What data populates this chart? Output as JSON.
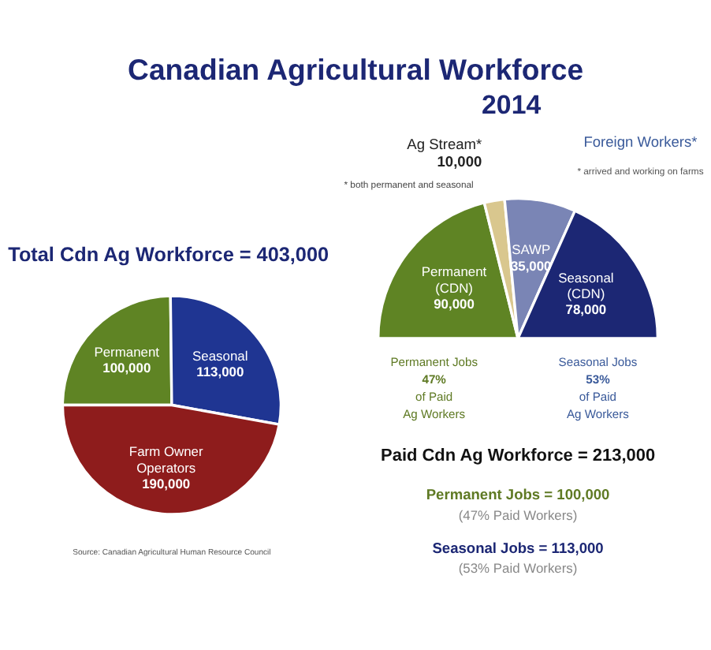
{
  "chart_data": [
    {
      "type": "pie",
      "title": "Canadian Agricultural Workforce",
      "subtitle": "Total Cdn Ag Workforce = 403,000",
      "categories": [
        "Permanent",
        "Seasonal",
        "Farm Owner Operators"
      ],
      "values": [
        100000,
        113000,
        190000
      ],
      "colors": [
        "#5f8424",
        "#1f3592",
        "#8e1c1c"
      ],
      "value_labels": [
        "100,000",
        "113,000",
        "190,000"
      ],
      "legend": false,
      "annotations": [
        "Source: Canadian Agricultural Human Resource Council"
      ]
    },
    {
      "type": "pie",
      "title": "2014",
      "categories": [
        "Permanent (CDN)",
        "Ag Stream*",
        "SAWP",
        "Seasonal (CDN)"
      ],
      "values": [
        90000,
        10000,
        35000,
        78000
      ],
      "colors": [
        "#5f8424",
        "#d9c78e",
        "#7a85b5",
        "#1c2774"
      ],
      "value_labels": [
        "90,000",
        "10,000",
        "35,000",
        "78,000"
      ],
      "legend": false,
      "annotations": [
        "* both permanent and seasonal",
        "Foreign Workers*",
        "* arrived and working on farms",
        "Permanent Jobs",
        "47%",
        "of Paid",
        "Ag Workers",
        "Seasonal Jobs",
        "53%",
        "of Paid",
        "Ag Workers",
        "Paid Cdn Ag Workforce = 213,000",
        "Permanent Jobs = 100,000",
        "(47% Paid Workers)",
        "Seasonal Jobs = 113,000",
        "(53% Paid Workers)"
      ]
    }
  ]
}
